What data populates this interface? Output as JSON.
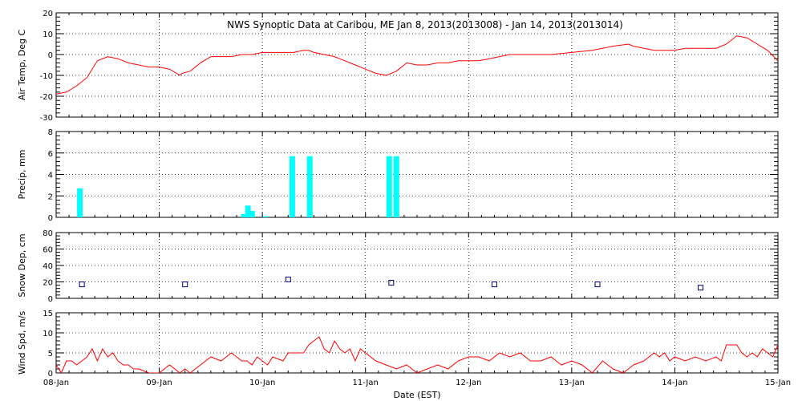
{
  "chart_data": {
    "title": "NWS Synoptic Data at Caribou, ME   Jan  8, 2013(2013008) - Jan 14, 2013(2013014)",
    "xlabel": "Date (EST)",
    "x_ticks": [
      "08-Jan",
      "09-Jan",
      "10-Jan",
      "11-Jan",
      "12-Jan",
      "13-Jan",
      "14-Jan",
      "15-Jan"
    ],
    "x_range_days": [
      0,
      7
    ],
    "line_color": "#ff0000",
    "precip_color": "#00ffff",
    "snow_color": "#000080",
    "panels": [
      {
        "type": "line",
        "ylabel": "Air Temp, Deg C",
        "ylim": [
          -30,
          20
        ],
        "yticks": [
          -30,
          -20,
          -10,
          0,
          10,
          20
        ],
        "grid": true,
        "x": [
          0.0,
          0.1,
          0.2,
          0.3,
          0.4,
          0.5,
          0.6,
          0.7,
          0.8,
          0.9,
          1.0,
          1.1,
          1.2,
          1.22,
          1.3,
          1.4,
          1.5,
          1.6,
          1.7,
          1.8,
          1.9,
          2.0,
          2.1,
          2.2,
          2.3,
          2.4,
          2.45,
          2.5,
          2.6,
          2.7,
          2.8,
          2.9,
          3.0,
          3.1,
          3.2,
          3.3,
          3.4,
          3.5,
          3.6,
          3.7,
          3.8,
          3.9,
          4.0,
          4.1,
          4.2,
          4.4,
          4.6,
          4.8,
          5.0,
          5.2,
          5.4,
          5.55,
          5.6,
          5.7,
          5.8,
          5.9,
          6.0,
          6.1,
          6.2,
          6.3,
          6.4,
          6.5,
          6.6,
          6.7,
          6.8,
          6.9,
          7.0
        ],
        "values": [
          -19,
          -18,
          -15,
          -11,
          -3,
          -1,
          -2,
          -4,
          -5,
          -6,
          -6,
          -7,
          -10,
          -9,
          -8,
          -4,
          -1,
          -1,
          -1,
          0,
          0,
          1,
          1,
          1,
          1,
          2,
          2,
          1,
          0,
          -1,
          -3,
          -5,
          -7,
          -9,
          -10,
          -8,
          -4,
          -5,
          -5,
          -4,
          -4,
          -3,
          -3,
          -3,
          -2,
          0,
          0,
          0,
          1,
          2,
          4,
          5,
          4,
          3,
          2,
          2,
          2,
          3,
          3,
          3,
          3,
          5,
          9,
          8,
          5,
          2,
          -3
        ]
      },
      {
        "type": "bar",
        "ylabel": "Precip, mm",
        "ylim": [
          0,
          8
        ],
        "yticks": [
          0,
          2,
          4,
          6,
          8
        ],
        "grid": true,
        "x": [
          0.23,
          1.82,
          1.86,
          1.9,
          2.03,
          2.29,
          2.46,
          3.23,
          3.3
        ],
        "values": [
          2.7,
          0.3,
          1.1,
          0.6,
          0.1,
          5.7,
          5.7,
          5.7,
          5.7
        ]
      },
      {
        "type": "scatter",
        "ylabel": "Snow Dep, cm",
        "ylim": [
          0,
          80
        ],
        "yticks": [
          0,
          20,
          40,
          60,
          80
        ],
        "grid": true,
        "x": [
          0.25,
          1.25,
          2.25,
          3.25,
          4.25,
          5.25,
          6.25
        ],
        "values": [
          17,
          17,
          23,
          19,
          17,
          17,
          13
        ]
      },
      {
        "type": "line",
        "ylabel": "Wind Spd, m/s",
        "ylim": [
          0,
          15
        ],
        "yticks": [
          0,
          5,
          10,
          15
        ],
        "grid": true,
        "x": [
          0.0,
          0.05,
          0.1,
          0.15,
          0.2,
          0.25,
          0.3,
          0.35,
          0.4,
          0.45,
          0.5,
          0.55,
          0.6,
          0.65,
          0.7,
          0.75,
          0.8,
          0.9,
          1.0,
          1.05,
          1.1,
          1.15,
          1.2,
          1.25,
          1.3,
          1.4,
          1.5,
          1.6,
          1.7,
          1.75,
          1.8,
          1.85,
          1.9,
          1.95,
          2.0,
          2.05,
          2.1,
          2.2,
          2.25,
          2.3,
          2.35,
          2.4,
          2.45,
          2.5,
          2.55,
          2.6,
          2.65,
          2.7,
          2.75,
          2.8,
          2.85,
          2.9,
          2.95,
          3.0,
          3.1,
          3.2,
          3.3,
          3.4,
          3.5,
          3.6,
          3.7,
          3.8,
          3.9,
          4.0,
          4.1,
          4.2,
          4.3,
          4.4,
          4.5,
          4.6,
          4.7,
          4.8,
          4.9,
          5.0,
          5.1,
          5.2,
          5.3,
          5.4,
          5.5,
          5.6,
          5.7,
          5.75,
          5.8,
          5.85,
          5.9,
          5.95,
          6.0,
          6.1,
          6.2,
          6.3,
          6.4,
          6.45,
          6.5,
          6.55,
          6.6,
          6.65,
          6.7,
          6.75,
          6.8,
          6.85,
          6.9,
          6.95,
          7.0
        ],
        "values": [
          2,
          0,
          3,
          3,
          2,
          3,
          4,
          6,
          3,
          6,
          4,
          5,
          3,
          2,
          2,
          1,
          1,
          0,
          0,
          1,
          2,
          1,
          0,
          1,
          0,
          2,
          4,
          3,
          5,
          4,
          3,
          3,
          2,
          4,
          3,
          2,
          4,
          3,
          5,
          5,
          5,
          5,
          7,
          8,
          9,
          6,
          5,
          8,
          6,
          5,
          6,
          3,
          6,
          5,
          3,
          2,
          1,
          2,
          0,
          1,
          2,
          1,
          3,
          4,
          4,
          3,
          5,
          4,
          5,
          3,
          3,
          4,
          2,
          3,
          2,
          0,
          3,
          1,
          0,
          2,
          3,
          4,
          5,
          4,
          5,
          3,
          4,
          3,
          4,
          3,
          4,
          3,
          7,
          7,
          7,
          5,
          4,
          5,
          4,
          6,
          5,
          4,
          7
        ]
      }
    ]
  }
}
